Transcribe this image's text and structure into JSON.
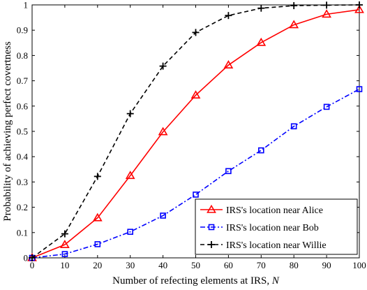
{
  "chart_data": {
    "type": "line",
    "title": "",
    "xlabel": "Number of refecting elements at IRS, ",
    "xlabel_var": "N",
    "ylabel": "Probability of achieving perfect covertness",
    "xlim": [
      0,
      100
    ],
    "ylim": [
      0,
      1
    ],
    "xticks": [
      0,
      10,
      20,
      30,
      40,
      50,
      60,
      70,
      80,
      90,
      100
    ],
    "yticks": [
      0,
      0.1,
      0.2,
      0.3,
      0.4,
      0.5,
      0.6,
      0.7,
      0.8,
      0.9,
      1
    ],
    "ytick_labels": [
      "0",
      "0.1",
      "0.2",
      "0.3",
      "0.4",
      "0.5",
      "0.6",
      "0.7",
      "0.8",
      "0.9",
      "1"
    ],
    "grid": false,
    "legend_position": "bottom-right",
    "x": [
      0,
      10,
      20,
      30,
      40,
      50,
      60,
      70,
      80,
      90,
      100
    ],
    "series": [
      {
        "name": "IRS's location near Alice",
        "color": "#ff0000",
        "line_style": "solid",
        "marker": "triangle",
        "values": [
          0.0,
          0.052,
          0.158,
          0.325,
          0.498,
          0.643,
          0.762,
          0.851,
          0.921,
          0.963,
          0.981
        ]
      },
      {
        "name": "IRS's location near Bob",
        "color": "#0000ff",
        "line_style": "dashdot",
        "marker": "square",
        "values": [
          0.0,
          0.015,
          0.054,
          0.103,
          0.167,
          0.25,
          0.343,
          0.425,
          0.52,
          0.597,
          0.667
        ]
      },
      {
        "name": "IRS's location near Willie",
        "color": "#000000",
        "line_style": "dashed",
        "marker": "plus",
        "values": [
          0.0,
          0.095,
          0.322,
          0.57,
          0.758,
          0.891,
          0.958,
          0.987,
          0.997,
          0.999,
          1.0
        ]
      }
    ]
  }
}
